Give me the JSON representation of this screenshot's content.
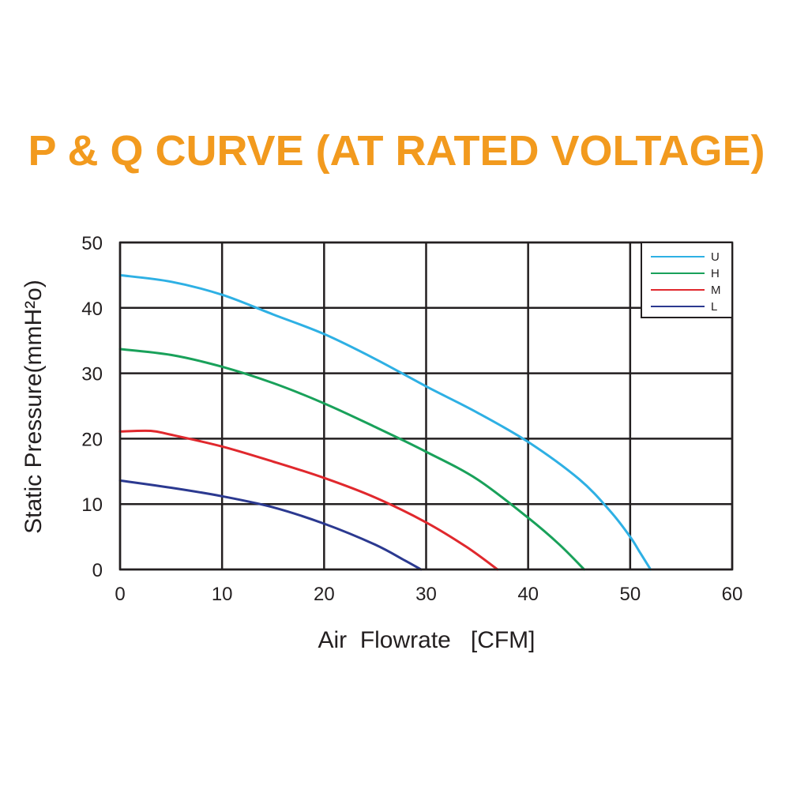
{
  "chart_data": {
    "type": "line",
    "title": "P & Q CURVE (AT RATED VOLTAGE)",
    "xlabel": "Air  Flowrate   [CFM]",
    "ylabel": "Static Pressure(mmH²o)",
    "xlim": [
      0,
      60
    ],
    "ylim": [
      0,
      50
    ],
    "x_ticks": [
      0,
      10,
      20,
      30,
      40,
      50,
      60
    ],
    "y_ticks": [
      0,
      10,
      20,
      30,
      40,
      50
    ],
    "grid": true,
    "legend_position": "top-right",
    "series": [
      {
        "name": "U",
        "color": "#2eb0e4",
        "points": [
          [
            0,
            45
          ],
          [
            5,
            44
          ],
          [
            10,
            42
          ],
          [
            15,
            39
          ],
          [
            20,
            36
          ],
          [
            25,
            32.2
          ],
          [
            30,
            28
          ],
          [
            35,
            24
          ],
          [
            40,
            19.5
          ],
          [
            45,
            13.8
          ],
          [
            48,
            9
          ],
          [
            50,
            5
          ],
          [
            51,
            2.5
          ],
          [
            52,
            0
          ]
        ]
      },
      {
        "name": "H",
        "color": "#19a15a",
        "points": [
          [
            0,
            33.7
          ],
          [
            5,
            32.8
          ],
          [
            10,
            31
          ],
          [
            15,
            28.5
          ],
          [
            20,
            25.4
          ],
          [
            25,
            21.8
          ],
          [
            30,
            18
          ],
          [
            35,
            13.8
          ],
          [
            40,
            7.9
          ],
          [
            43,
            3.9
          ],
          [
            45.5,
            0
          ]
        ]
      },
      {
        "name": "M",
        "color": "#e0282d",
        "points": [
          [
            0,
            21.1
          ],
          [
            3,
            21.2
          ],
          [
            5,
            20.6
          ],
          [
            10,
            18.8
          ],
          [
            15,
            16.5
          ],
          [
            20,
            14
          ],
          [
            25,
            11
          ],
          [
            30,
            7.2
          ],
          [
            34,
            3.4
          ],
          [
            37,
            0
          ]
        ]
      },
      {
        "name": "L",
        "color": "#2b3990",
        "points": [
          [
            0,
            13.6
          ],
          [
            5,
            12.5
          ],
          [
            10,
            11.2
          ],
          [
            15,
            9.5
          ],
          [
            20,
            7
          ],
          [
            25,
            3.8
          ],
          [
            28,
            1.3
          ],
          [
            29.5,
            0
          ]
        ]
      }
    ]
  }
}
